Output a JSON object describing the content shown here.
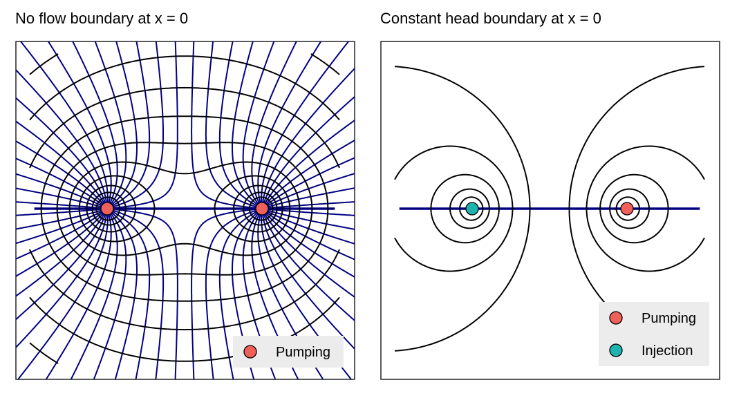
{
  "chart_data": [
    {
      "type": "line",
      "title": "No flow boundary at x = 0",
      "subtype": "flow-net (streamlines and equipotentials)",
      "xlim": [
        -1,
        1
      ],
      "ylim": [
        -1,
        1
      ],
      "wells": [
        {
          "x": -0.5,
          "y": 0,
          "kind": "Pumping"
        },
        {
          "x": 0.5,
          "y": 0,
          "kind": "Pumping"
        }
      ],
      "series": [
        {
          "style": "solid",
          "color": "#000080"
        },
        {
          "style": "dashed",
          "color": "#000000"
        }
      ],
      "legend": {
        "position": "bottom-right",
        "entries": [
          {
            "label": "Pumping",
            "color": "#F0605A"
          }
        ]
      },
      "grid": false
    },
    {
      "type": "line",
      "title": "Constant head boundary at x = 0",
      "subtype": "flow-net (streamlines and equipotentials)",
      "xlim": [
        -1,
        1
      ],
      "ylim": [
        -1,
        1
      ],
      "wells": [
        {
          "x": -0.5,
          "y": 0,
          "kind": "Injection"
        },
        {
          "x": 0.5,
          "y": 0,
          "kind": "Pumping"
        }
      ],
      "series": [
        {
          "style": "solid",
          "color": "#000080"
        },
        {
          "style": "dashed",
          "color": "#000000"
        }
      ],
      "legend": {
        "position": "bottom-right",
        "entries": [
          {
            "label": "Pumping",
            "color": "#F0605A"
          },
          {
            "label": "Injection",
            "color": "#1FB3B0"
          }
        ]
      },
      "grid": false
    }
  ]
}
